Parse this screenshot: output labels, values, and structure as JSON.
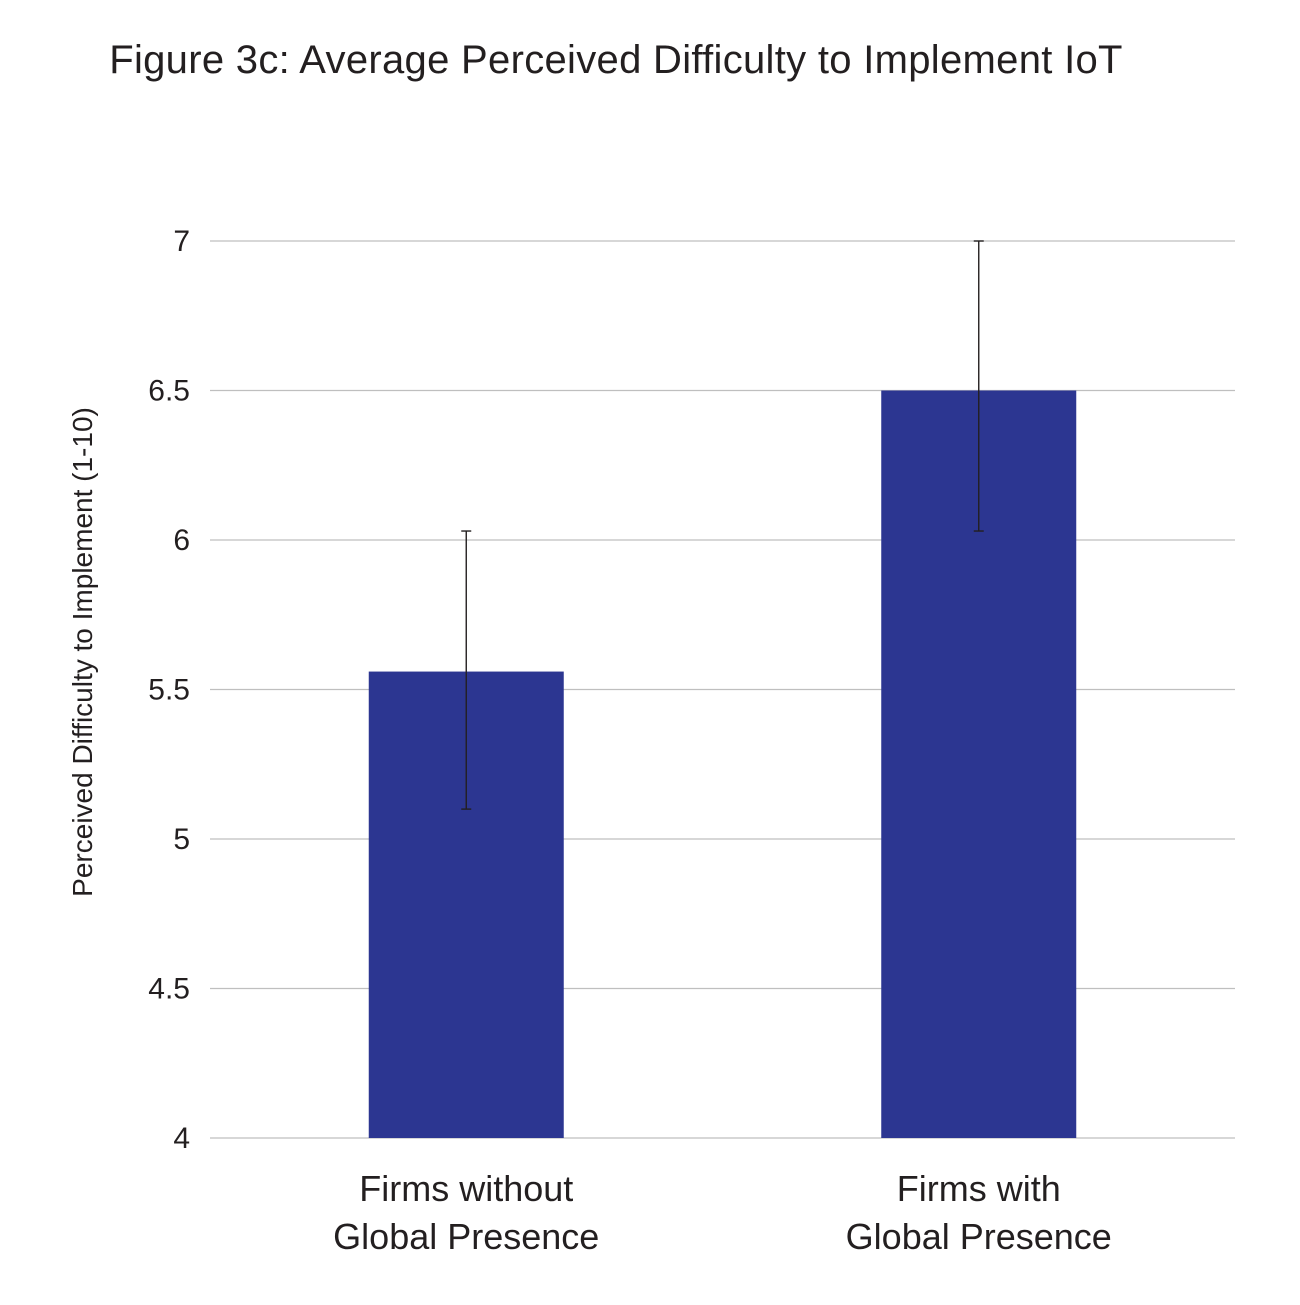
{
  "chart_data": {
    "type": "bar",
    "title": "Figure 3c: Average Perceived Difficulty to Implement IoT",
    "xlabel": "",
    "ylabel": "Perceived Difficulty to Implement (1-10)",
    "categories": [
      [
        "Firms without",
        "Global Presence"
      ],
      [
        "Firms with",
        "Global Presence"
      ]
    ],
    "series": [
      {
        "values": [
          5.56,
          6.5
        ],
        "error_low": [
          5.1,
          6.03
        ],
        "error_high": [
          6.03,
          7.0
        ],
        "color": "#2c3691"
      }
    ],
    "ylim": [
      4,
      7
    ],
    "yticks": [
      "4",
      "4.5",
      "5",
      "5.5",
      "6",
      "6.5",
      "7"
    ],
    "grid": true,
    "legend": "none",
    "colors": {
      "bar": "#2c3691",
      "grid": "#bfbfbf",
      "error_bar": "#231f20",
      "text": "#231f20"
    }
  }
}
